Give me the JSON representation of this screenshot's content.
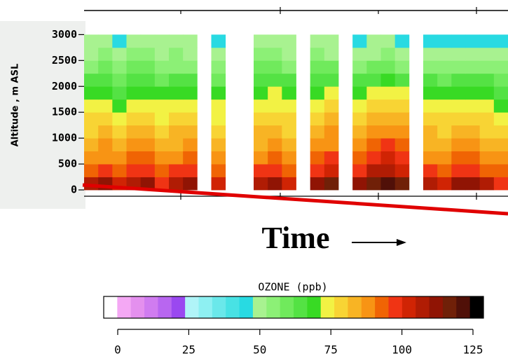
{
  "chart_data": {
    "type": "heatmap",
    "ylabel": "Altitude , m ASL",
    "xlabel": "Time",
    "ylim": [
      0,
      3100
    ],
    "yticks": [
      0,
      500,
      1000,
      1500,
      2000,
      2500,
      3000
    ],
    "ybins": [
      0,
      250,
      500,
      750,
      1000,
      1250,
      1500,
      1750,
      2000,
      2250,
      2500,
      2750,
      3000
    ],
    "categories": [
      null,
      null,
      null,
      null,
      null,
      null,
      null,
      null,
      null,
      null,
      null,
      null,
      null,
      null,
      null,
      null,
      null,
      null,
      null,
      null,
      null,
      null,
      null,
      null,
      null,
      null,
      null,
      null,
      null,
      null
    ],
    "z": [
      [
        105,
        110,
        102,
        108,
        112,
        100,
        106,
        110,
        null,
        104,
        null,
        null,
        108,
        112,
        104,
        null,
        110,
        115,
        null,
        112,
        118,
        120,
        116,
        null,
        108,
        104,
        112,
        110,
        106,
        100
      ],
      [
        95,
        98,
        92,
        96,
        100,
        94,
        97,
        99,
        null,
        94,
        null,
        null,
        96,
        100,
        95,
        null,
        98,
        102,
        null,
        100,
        106,
        108,
        104,
        null,
        96,
        94,
        100,
        98,
        95,
        92
      ],
      [
        88,
        90,
        86,
        92,
        94,
        88,
        90,
        91,
        null,
        88,
        null,
        null,
        90,
        93,
        89,
        null,
        92,
        96,
        null,
        94,
        100,
        102,
        98,
        null,
        90,
        88,
        94,
        92,
        89,
        86
      ],
      [
        84,
        86,
        82,
        87,
        88,
        84,
        85,
        86,
        null,
        83,
        null,
        null,
        85,
        88,
        84,
        null,
        87,
        90,
        null,
        88,
        94,
        96,
        92,
        null,
        85,
        84,
        88,
        86,
        84,
        82
      ],
      [
        80,
        82,
        78,
        83,
        84,
        80,
        81,
        82,
        null,
        79,
        null,
        null,
        81,
        84,
        80,
        null,
        83,
        86,
        null,
        84,
        88,
        90,
        86,
        null,
        81,
        80,
        84,
        82,
        80,
        78
      ],
      [
        77,
        78,
        75,
        79,
        80,
        76,
        78,
        78,
        null,
        76,
        null,
        null,
        78,
        80,
        77,
        null,
        79,
        82,
        null,
        80,
        83,
        84,
        81,
        null,
        78,
        77,
        80,
        78,
        77,
        75
      ],
      [
        73,
        74,
        71,
        75,
        76,
        72,
        74,
        74,
        null,
        72,
        null,
        null,
        74,
        76,
        73,
        null,
        75,
        77,
        null,
        76,
        78,
        79,
        77,
        null,
        74,
        73,
        76,
        74,
        73,
        71
      ],
      [
        68,
        70,
        66,
        70,
        71,
        67,
        69,
        69,
        null,
        67,
        null,
        null,
        70,
        72,
        68,
        null,
        70,
        72,
        null,
        71,
        73,
        74,
        72,
        null,
        69,
        68,
        71,
        70,
        68,
        66
      ],
      [
        62,
        64,
        60,
        65,
        66,
        61,
        63,
        63,
        null,
        61,
        null,
        null,
        64,
        66,
        62,
        null,
        65,
        66,
        null,
        65,
        66,
        67,
        64,
        null,
        62,
        61,
        64,
        63,
        62,
        60
      ],
      [
        56,
        58,
        54,
        59,
        60,
        55,
        57,
        57,
        null,
        55,
        null,
        null,
        58,
        60,
        56,
        null,
        58,
        58,
        null,
        57,
        58,
        59,
        56,
        null,
        55,
        54,
        57,
        56,
        55,
        54
      ],
      [
        52,
        54,
        50,
        54,
        55,
        51,
        53,
        52,
        null,
        51,
        null,
        null,
        54,
        55,
        52,
        null,
        53,
        52,
        null,
        51,
        52,
        53,
        51,
        null,
        50,
        49,
        51,
        50,
        50,
        49
      ],
      [
        48,
        50,
        47,
        50,
        51,
        48,
        49,
        48,
        null,
        47,
        null,
        null,
        50,
        51,
        48,
        null,
        49,
        48,
        null,
        47,
        48,
        49,
        47,
        null,
        46,
        45,
        47,
        46,
        46,
        45
      ]
    ],
    "colorbar": {
      "title": "OZONE (ppb)",
      "colors": [
        "#ffffff",
        "#f4a8f4",
        "#e490ee",
        "#d07cf0",
        "#b866f0",
        "#9a48f0",
        "#b0f4f8",
        "#8ef0f2",
        "#6ae8ea",
        "#48e2e4",
        "#28dae2",
        "#a8f290",
        "#8cf076",
        "#70ea5c",
        "#54e244",
        "#38da24",
        "#f2f244",
        "#f8d434",
        "#f8b424",
        "#f89414",
        "#f06404",
        "#f03414",
        "#d02404",
        "#b01c04",
        "#901404",
        "#702008",
        "#501008",
        "#000000"
      ],
      "xlim": [
        0,
        125
      ],
      "xticks": [
        0,
        25,
        50,
        75,
        100,
        125
      ]
    }
  }
}
